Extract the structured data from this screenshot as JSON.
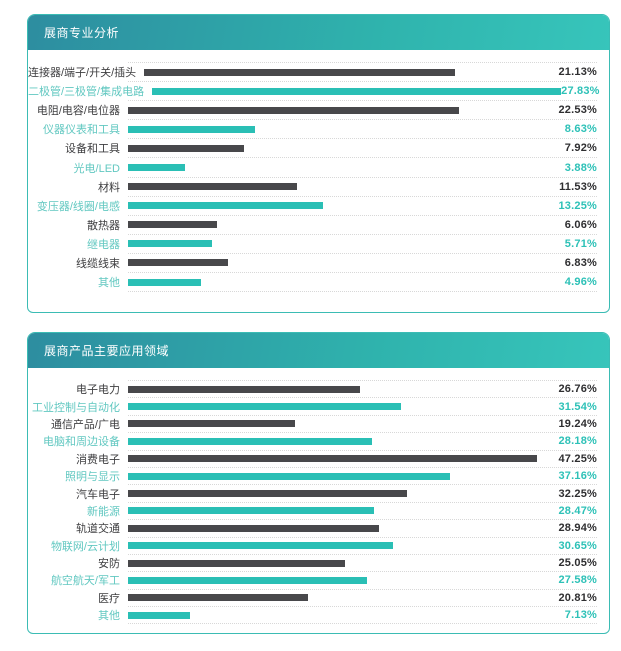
{
  "page": {
    "background": "#ffffff"
  },
  "colors": {
    "panel_border": "#3bbcb4",
    "header_gradient_start": "#2d8da0",
    "header_gradient_mid": "#2fb3ad",
    "header_gradient_end": "#37c5bb",
    "header_text": "#ffffff",
    "bar_dark": "#48484b",
    "bar_teal": "#2abfb5",
    "label_dark": "#3e3e40",
    "label_teal": "#62c8c1",
    "value_dark": "#2e2e30",
    "value_teal": "#2dc1b7",
    "row_separator": "#d8d8d8"
  },
  "chart_data": [
    {
      "type": "bar",
      "orientation": "horizontal",
      "title": "展商专业分析",
      "categories": [
        "连接器/端子/开关/插头",
        "二极管/三极管/集成电路",
        "电阻/电容/电位器",
        "仪器仪表和工具",
        "设备和工具",
        "光电/LED",
        "材料",
        "变压器/线圈/电感",
        "散热器",
        "继电器",
        "线缆线束",
        "其他"
      ],
      "values": [
        21.13,
        27.83,
        22.53,
        8.63,
        7.92,
        3.88,
        11.53,
        13.25,
        6.06,
        5.71,
        6.83,
        4.96
      ],
      "value_labels": [
        "21.13%",
        "27.83%",
        "22.53%",
        "8.63%",
        "7.92%",
        "3.88%",
        "11.53%",
        "13.25%",
        "6.06%",
        "5.71%",
        "6.83%",
        "4.96%"
      ],
      "xlim": [
        0,
        27.83
      ],
      "bar_color_pattern": [
        "dark",
        "teal"
      ],
      "legend": "none",
      "grid": "dotted-row-separators"
    },
    {
      "type": "bar",
      "orientation": "horizontal",
      "title": "展商产品主要应用领域",
      "categories": [
        "电子电力",
        "工业控制与自动化",
        "通信产品/广电",
        "电脑和周边设备",
        "消费电子",
        "照明与显示",
        "汽车电子",
        "新能源",
        "轨道交通",
        "物联网/云计划",
        "安防",
        "航空航天/军工",
        "医疗",
        "其他"
      ],
      "values": [
        26.76,
        31.54,
        19.24,
        28.18,
        47.25,
        37.16,
        32.25,
        28.47,
        28.94,
        30.65,
        25.05,
        27.58,
        20.81,
        7.13
      ],
      "value_labels": [
        "26.76%",
        "31.54%",
        "19.24%",
        "28.18%",
        "47.25%",
        "37.16%",
        "32.25%",
        "28.47%",
        "28.94%",
        "30.65%",
        "25.05%",
        "27.58%",
        "20.81%",
        "7.13%"
      ],
      "xlim": [
        0,
        47.25
      ],
      "bar_color_pattern": [
        "dark",
        "teal"
      ],
      "legend": "none",
      "grid": "dotted-row-separators"
    }
  ]
}
